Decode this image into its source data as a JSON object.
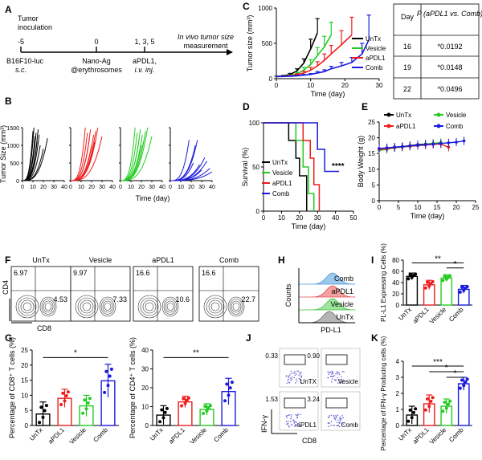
{
  "panels": {
    "A": "A",
    "B": "B",
    "C": "C",
    "D": "D",
    "E": "E",
    "F": "F",
    "G": "G",
    "H": "H",
    "I": "I",
    "J": "J",
    "K": "K"
  },
  "timeline": {
    "tumor_inoculation": [
      "Tumor",
      "inoculation"
    ],
    "ticks": [
      "-5",
      "0",
      "1, 3, 5"
    ],
    "b16": "B16F10-luc",
    "sc": "s.c.",
    "nano": [
      "Nano-Ag",
      "@erythrosomes"
    ],
    "apdl1": [
      "aPDL1,",
      "i.v. inj."
    ],
    "invivo": [
      "In vivo tumor size",
      "measurement"
    ]
  },
  "colors": {
    "UnTx": "#000000",
    "Vesicle": "#22cc22",
    "aPDL1": "#ee1c1c",
    "Comb": "#1a1adf"
  },
  "groups": [
    "UnTx",
    "Vesicle",
    "aPDL1",
    "Comb"
  ],
  "pvalue_table": {
    "headers": [
      "Day",
      "P (aPDL1 vs. Comb)"
    ],
    "rows": [
      [
        "16",
        "*0.0192"
      ],
      [
        "19",
        "*0.0148"
      ],
      [
        "22",
        "*0.0496"
      ]
    ]
  },
  "chart_data": [
    {
      "id": "C",
      "type": "line",
      "xlabel": "Time (day)",
      "ylabel": "Tumor size (mm³)",
      "xlim": [
        0,
        30
      ],
      "ylim": [
        0,
        1000
      ],
      "xticks": [
        "0",
        "10",
        "20",
        "30"
      ],
      "yticks": [
        "0",
        "500",
        "1000"
      ],
      "legend": [
        "UnTx",
        "Vesicle",
        "aPDL1",
        "Comb"
      ],
      "series": [
        {
          "name": "UnTx",
          "x": [
            0,
            2,
            4,
            6,
            8,
            10,
            12
          ],
          "y": [
            30,
            40,
            60,
            110,
            220,
            420,
            650
          ],
          "err": [
            5,
            8,
            15,
            30,
            60,
            140,
            200
          ]
        },
        {
          "name": "Vesicle",
          "x": [
            0,
            2,
            4,
            6,
            8,
            10,
            12,
            14,
            16
          ],
          "y": [
            30,
            35,
            45,
            70,
            120,
            200,
            330,
            450,
            620
          ],
          "err": [
            5,
            6,
            10,
            20,
            40,
            70,
            110,
            150,
            180
          ]
        },
        {
          "name": "aPDL1",
          "x": [
            0,
            2,
            4,
            6,
            8,
            10,
            12,
            14,
            16,
            19,
            22
          ],
          "y": [
            30,
            32,
            40,
            55,
            80,
            120,
            180,
            260,
            350,
            480,
            620
          ],
          "err": [
            5,
            5,
            8,
            15,
            25,
            40,
            60,
            90,
            120,
            200,
            250
          ]
        },
        {
          "name": "Comb",
          "x": [
            0,
            2,
            4,
            6,
            8,
            10,
            12,
            14,
            16,
            19,
            22,
            25,
            27
          ],
          "y": [
            30,
            30,
            35,
            40,
            50,
            60,
            80,
            100,
            140,
            180,
            230,
            350,
            550
          ],
          "err": [
            5,
            5,
            6,
            8,
            10,
            12,
            20,
            25,
            35,
            50,
            70,
            150,
            350
          ]
        }
      ]
    },
    {
      "id": "B",
      "type": "line",
      "ylabel": "Tumor Size (mm³)",
      "xlabel": "Time (day)",
      "xlim": [
        0,
        40
      ],
      "ylim": [
        0,
        1500
      ],
      "xticks": [
        "0",
        "10",
        "20",
        "30",
        "40"
      ],
      "yticks": [
        "0",
        "500",
        "1000",
        "1500"
      ],
      "subplots": [
        {
          "name": "UnTx",
          "end_days": [
            10,
            11,
            12,
            13,
            14,
            15,
            16,
            17,
            20,
            24
          ],
          "end_values": [
            1400,
            1500,
            1250,
            1350,
            1100,
            1450,
            1300,
            1000,
            900,
            1200
          ]
        },
        {
          "name": "aPDL1",
          "end_days": [
            14,
            16,
            18,
            19,
            20,
            22,
            23,
            24,
            26,
            30
          ],
          "end_values": [
            1500,
            1350,
            1200,
            1450,
            1000,
            1300,
            1100,
            1400,
            1500,
            1250
          ]
        },
        {
          "name": "Vesicle",
          "end_days": [
            14,
            16,
            18,
            19,
            20,
            21,
            22,
            24,
            26,
            30
          ],
          "end_values": [
            1500,
            1350,
            1200,
            1450,
            1000,
            1300,
            1100,
            1400,
            1500,
            1250
          ]
        },
        {
          "name": "Comb",
          "end_days": [
            18,
            22,
            24,
            26,
            28,
            30,
            33,
            35,
            38,
            40
          ],
          "end_values": [
            1150,
            500,
            1000,
            1150,
            450,
            300,
            650,
            550,
            350,
            250
          ]
        }
      ]
    },
    {
      "id": "D",
      "type": "line",
      "xlabel": "Time (day)",
      "ylabel": "Survival (%)",
      "xlim": [
        0,
        50
      ],
      "ylim": [
        0,
        100
      ],
      "xticks": [
        "0",
        "10",
        "20",
        "30",
        "40",
        "50"
      ],
      "yticks": [
        "0",
        "50",
        "100"
      ],
      "annotation": "****",
      "legend": [
        "UnTx",
        "Vesicle",
        "aPDL1",
        "Comb"
      ],
      "series": [
        {
          "name": "UnTx",
          "steps": [
            [
              0,
              100
            ],
            [
              14,
              100
            ],
            [
              14,
              80
            ],
            [
              18,
              80
            ],
            [
              18,
              60
            ],
            [
              20,
              60
            ],
            [
              20,
              40
            ],
            [
              24,
              40
            ],
            [
              24,
              0
            ]
          ]
        },
        {
          "name": "Vesicle",
          "steps": [
            [
              0,
              100
            ],
            [
              18,
              100
            ],
            [
              18,
              80
            ],
            [
              22,
              80
            ],
            [
              22,
              50
            ],
            [
              25,
              50
            ],
            [
              25,
              20
            ],
            [
              28,
              20
            ],
            [
              28,
              0
            ]
          ]
        },
        {
          "name": "aPDL1",
          "steps": [
            [
              0,
              100
            ],
            [
              22,
              100
            ],
            [
              22,
              80
            ],
            [
              26,
              80
            ],
            [
              26,
              60
            ],
            [
              28,
              60
            ],
            [
              28,
              30
            ],
            [
              31,
              30
            ],
            [
              31,
              0
            ]
          ]
        },
        {
          "name": "Comb",
          "steps": [
            [
              0,
              100
            ],
            [
              30,
              100
            ],
            [
              30,
              70
            ],
            [
              34,
              70
            ],
            [
              34,
              45
            ],
            [
              42,
              45
            ]
          ]
        }
      ]
    },
    {
      "id": "E",
      "type": "line",
      "xlabel": "Time (day)",
      "ylabel": "Body Weight (g)",
      "xlim": [
        0,
        25
      ],
      "ylim": [
        0,
        25
      ],
      "xticks": [
        "0",
        "5",
        "10",
        "15",
        "20",
        "25"
      ],
      "yticks": [
        "0",
        "5",
        "10",
        "15",
        "20",
        "25"
      ],
      "legend": [
        "UnTx",
        "Vesicle",
        "aPDL1",
        "Comb"
      ],
      "series": [
        {
          "name": "UnTx",
          "x": [
            0,
            2,
            4,
            6,
            8,
            10,
            12,
            14
          ],
          "y": [
            16.5,
            16.8,
            17,
            17.2,
            17.5,
            17.8,
            18,
            18.2
          ]
        },
        {
          "name": "Vesicle",
          "x": [
            0,
            2,
            4,
            6,
            8,
            10,
            12,
            14,
            16
          ],
          "y": [
            16,
            16.3,
            16.8,
            17,
            17.3,
            17.6,
            17.9,
            18.2,
            18.5
          ]
        },
        {
          "name": "aPDL1",
          "x": [
            0,
            2,
            4,
            6,
            8,
            10,
            12,
            14,
            16,
            18
          ],
          "y": [
            16.3,
            16.5,
            16.9,
            17.1,
            17.3,
            17.5,
            17.7,
            17.9,
            18,
            17
          ]
        },
        {
          "name": "Comb",
          "x": [
            0,
            2,
            4,
            6,
            8,
            10,
            12,
            14,
            16,
            18,
            20,
            22
          ],
          "y": [
            16.6,
            16.8,
            17,
            17.2,
            17.4,
            17.6,
            17.8,
            18,
            18.2,
            18.4,
            18.6,
            19
          ]
        }
      ]
    },
    {
      "id": "G1",
      "type": "bar",
      "ylabel": "Percentage of CD8⁺ T cells (%)",
      "categories": [
        "UnTx",
        "aPDL1",
        "Vesicle",
        "Comb"
      ],
      "values": [
        3.8,
        9,
        6.5,
        14.8
      ],
      "errors": [
        4,
        3,
        3.5,
        5.5
      ],
      "ylim": [
        0,
        25
      ],
      "yticks": [
        "0",
        "5",
        "10",
        "15",
        "20",
        "25"
      ],
      "significance": "*"
    },
    {
      "id": "G2",
      "type": "bar",
      "ylabel": "Percentage of CD4⁺ T cells (%)",
      "categories": [
        "UnTx",
        "aPDL1",
        "Vesicle",
        "Comb"
      ],
      "values": [
        5.5,
        12.5,
        8.5,
        18
      ],
      "errors": [
        5,
        3,
        3,
        7
      ],
      "ylim": [
        0,
        40
      ],
      "yticks": [
        "0",
        "10",
        "20",
        "30",
        "40"
      ],
      "significance": "**"
    },
    {
      "id": "I",
      "type": "bar",
      "ylabel": "PL-L1 Expressing Cells (%)",
      "categories": [
        "UnTx",
        "aPDL1",
        "Vesicle",
        "Comb"
      ],
      "values": [
        51,
        36,
        48,
        28
      ],
      "errors": [
        6,
        8,
        6,
        7
      ],
      "ylim": [
        0,
        80
      ],
      "yticks": [
        "0",
        "20",
        "40",
        "60",
        "80"
      ],
      "significance": [
        "**",
        "*"
      ]
    },
    {
      "id": "K",
      "type": "bar",
      "ylabel": "Percentage of IFN-γ Producing cells (%)",
      "categories": [
        "UnTx",
        "aPDL1",
        "Vesicle",
        "Comb"
      ],
      "values": [
        0.65,
        1.35,
        1.2,
        2.6
      ],
      "errors": [
        0.55,
        0.55,
        0.45,
        0.4
      ],
      "ylim": [
        0,
        4
      ],
      "yticks": [
        "0",
        "1",
        "2",
        "3",
        "4"
      ],
      "significance": [
        "***",
        "*",
        "*"
      ]
    }
  ],
  "flow_F": {
    "groups": [
      "UnTx",
      "Vesicle",
      "aPDL1",
      "Comb"
    ],
    "cd4": [
      "6.97",
      "9.97",
      "16.6",
      "16.6"
    ],
    "cd8": [
      "4.53",
      "7.33",
      "10.6",
      "22.7"
    ],
    "xlabel": "CD8",
    "ylabel": "CD4"
  },
  "histogram_H": {
    "labels": [
      "Comb",
      "aPDL1",
      "Vesicle",
      "UnTx"
    ],
    "xlabel": "PD-L1",
    "ylabel": "Counts"
  },
  "flow_J": {
    "labels": [
      "UnTX",
      "Vesicle",
      "aPDL1",
      "Comb"
    ],
    "values": [
      "0.33",
      "0.90",
      "1.53",
      "3.24"
    ],
    "xlabel": "CD8",
    "ylabel": "IFN-γ"
  }
}
